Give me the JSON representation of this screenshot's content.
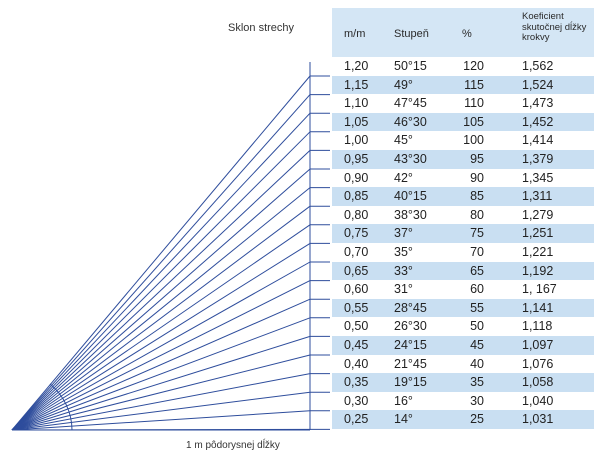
{
  "labels": {
    "slope_label": "Sklon strechy",
    "base_label": "1 m pôdorysnej dĺžky"
  },
  "table": {
    "headers": {
      "mm": "m/m",
      "stupen": "Stupeň",
      "percent": "%",
      "koeficient": "Koeficient skutočnej dĺžky krokvy"
    },
    "rows": [
      {
        "mm": "1,20",
        "stupen": "50°15",
        "percent": "120",
        "koef": "1,562"
      },
      {
        "mm": "1,15",
        "stupen": "49°",
        "percent": "115",
        "koef": "1,524"
      },
      {
        "mm": "1,10",
        "stupen": "47°45",
        "percent": "110",
        "koef": "1,473"
      },
      {
        "mm": "1,05",
        "stupen": "46°30",
        "percent": "105",
        "koef": "1,452"
      },
      {
        "mm": "1,00",
        "stupen": "45°",
        "percent": "100",
        "koef": "1,414"
      },
      {
        "mm": "0,95",
        "stupen": "43°30",
        "percent": "95",
        "koef": "1,379"
      },
      {
        "mm": "0,90",
        "stupen": "42°",
        "percent": "90",
        "koef": "1,345"
      },
      {
        "mm": "0,85",
        "stupen": "40°15",
        "percent": "85",
        "koef": "1,311"
      },
      {
        "mm": "0,80",
        "stupen": "38°30",
        "percent": "80",
        "koef": "1,279"
      },
      {
        "mm": "0,75",
        "stupen": "37°",
        "percent": "75",
        "koef": "1,251"
      },
      {
        "mm": "0,70",
        "stupen": "35°",
        "percent": "70",
        "koef": "1,221"
      },
      {
        "mm": "0,65",
        "stupen": "33°",
        "percent": "65",
        "koef": "1,192"
      },
      {
        "mm": "0,60",
        "stupen": "31°",
        "percent": "60",
        "koef": "1, 167"
      },
      {
        "mm": "0,55",
        "stupen": "28°45",
        "percent": "55",
        "koef": "1,141"
      },
      {
        "mm": "0,50",
        "stupen": "26°30",
        "percent": "50",
        "koef": "1,118"
      },
      {
        "mm": "0,45",
        "stupen": "24°15",
        "percent": "45",
        "koef": "1,097"
      },
      {
        "mm": "0,40",
        "stupen": "21°45",
        "percent": "40",
        "koef": "1,076"
      },
      {
        "mm": "0,35",
        "stupen": "19°15",
        "percent": "35",
        "koef": "1,058"
      },
      {
        "mm": "0,30",
        "stupen": "16°",
        "percent": "30",
        "koef": "1,040"
      },
      {
        "mm": "0,25",
        "stupen": "14°",
        "percent": "25",
        "koef": "1,031"
      }
    ]
  },
  "colors": {
    "line": "#2e4d9c",
    "header_bg": "#d4e6f5",
    "row_shade": "#c9dff2"
  }
}
